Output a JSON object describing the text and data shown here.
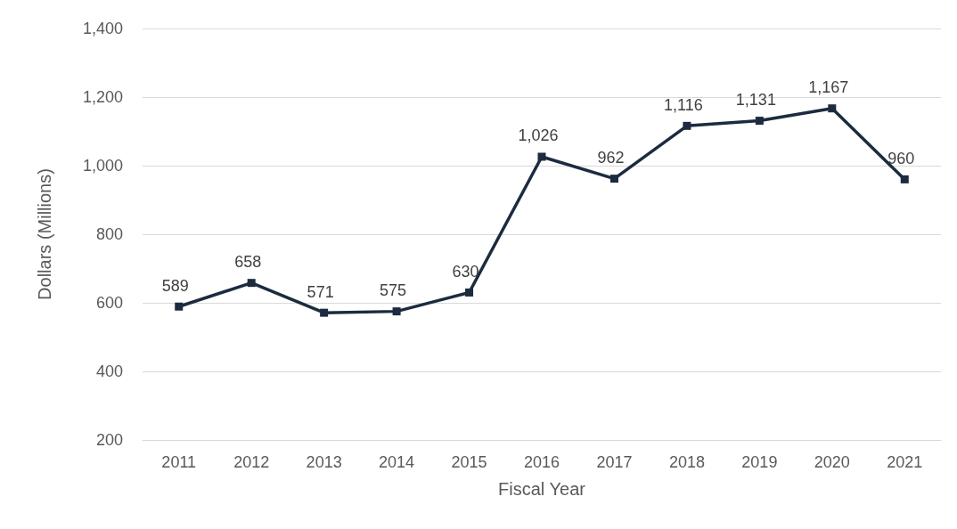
{
  "chart_data": {
    "type": "line",
    "xlabel": "Fiscal Year",
    "ylabel": "Dollars (Millions)",
    "categories": [
      "2011",
      "2012",
      "2013",
      "2014",
      "2015",
      "2016",
      "2017",
      "2018",
      "2019",
      "2020",
      "2021"
    ],
    "series": [
      {
        "color": "#1c2b3f",
        "values": [
          589,
          658,
          571,
          575,
          630,
          1026,
          962,
          1116,
          1131,
          1167,
          960
        ],
        "value_labels": [
          "589",
          "658",
          "571",
          "575",
          "630",
          "1,026",
          "962",
          "1,116",
          "1,131",
          "1,167",
          "960"
        ]
      }
    ],
    "ylim": [
      200,
      1400
    ],
    "yticks": [
      200,
      400,
      600,
      800,
      {
        "value": 1000,
        "label": "1,000"
      },
      {
        "value": 1200,
        "label": "1,200"
      },
      {
        "value": 1400,
        "label": "1,400"
      }
    ],
    "grid": "y",
    "marker": "square",
    "line_style": "solid"
  }
}
